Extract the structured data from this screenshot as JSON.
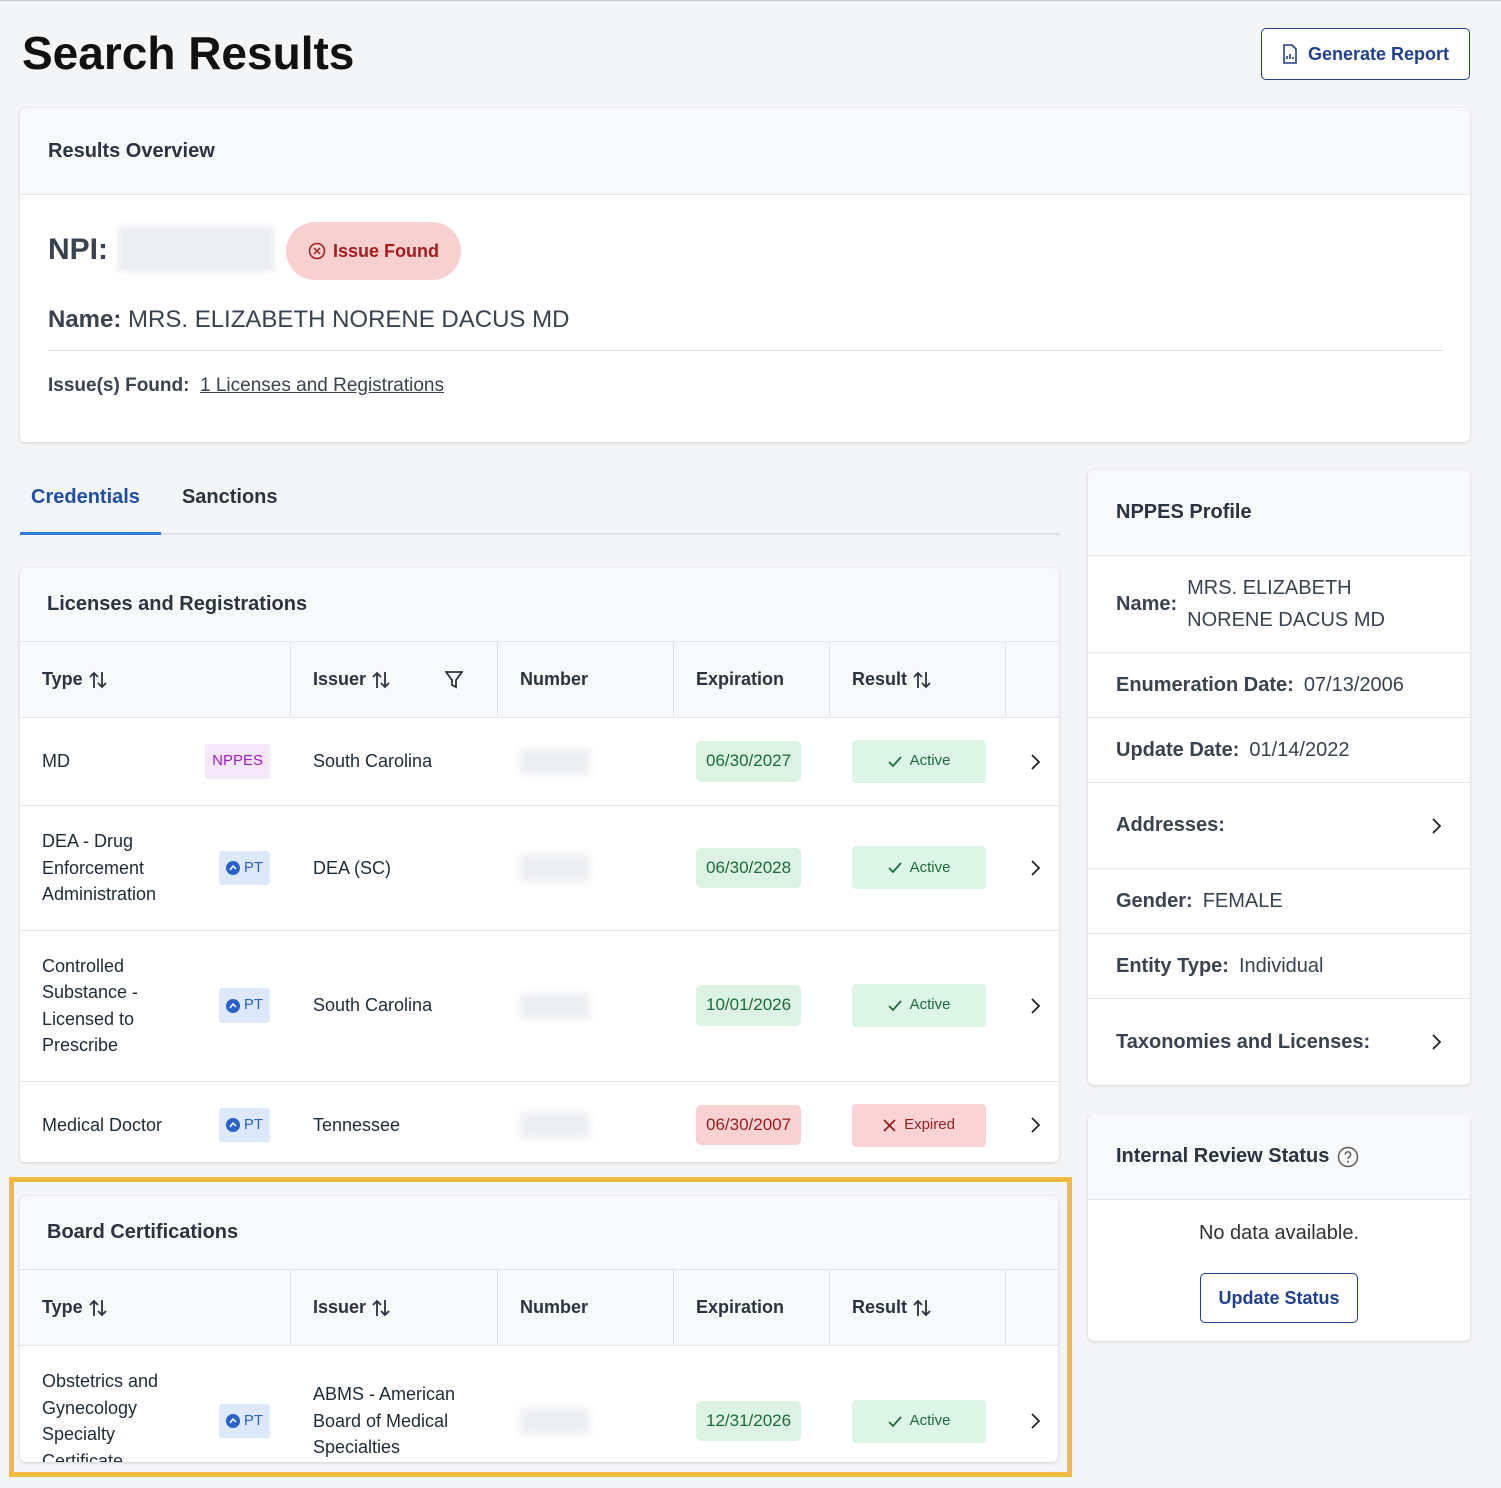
{
  "header": {
    "title": "Search Results",
    "button": "Generate Report"
  },
  "overview": {
    "title": "Results Overview",
    "npi_label": "NPI:",
    "status": "Issue Found",
    "name_label": "Name:",
    "name": "MRS. ELIZABETH NORENE DACUS MD",
    "issues_label": "Issue(s) Found:",
    "issues_link": "1 Licenses and Registrations"
  },
  "tabs": [
    "Credentials",
    "Sanctions"
  ],
  "licenses": {
    "title": "Licenses and Registrations",
    "columns": [
      {
        "label": "Type",
        "sortable": true
      },
      {
        "label": "Issuer",
        "sortable": true,
        "filter": true
      },
      {
        "label": "Number"
      },
      {
        "label": "Expiration"
      },
      {
        "label": "Result",
        "sortable": true
      }
    ],
    "rows": [
      {
        "type": "MD",
        "source": {
          "label": "NPPES",
          "color": "#a21cc4",
          "background": "#f6e7fb",
          "icon": false
        },
        "issuer": "South Carolina",
        "expiration": "06/30/2027",
        "result": "Active",
        "ok": true
      },
      {
        "type": "DEA - Drug Enforcement Administration",
        "source": {
          "label": "PT",
          "color": "#2a62c9",
          "background": "#dde9fb",
          "icon": true
        },
        "issuer": "DEA (SC)",
        "expiration": "06/30/2028",
        "result": "Active",
        "ok": true
      },
      {
        "type": "Controlled Substance - Licensed to Prescribe",
        "source": {
          "label": "PT",
          "color": "#2a62c9",
          "background": "#dde9fb",
          "icon": true
        },
        "issuer": "South Carolina",
        "expiration": "10/01/2026",
        "result": "Active",
        "ok": true
      },
      {
        "type": "Medical Doctor",
        "source": {
          "label": "PT",
          "color": "#2a62c9",
          "background": "#dde9fb",
          "icon": true
        },
        "issuer": "Tennessee",
        "expiration": "06/30/2007",
        "result": "Expired",
        "ok": false
      }
    ]
  },
  "board": {
    "title": "Board Certifications",
    "columns": [
      {
        "label": "Type",
        "sortable": true
      },
      {
        "label": "Issuer",
        "sortable": true
      },
      {
        "label": "Number"
      },
      {
        "label": "Expiration"
      },
      {
        "label": "Result",
        "sortable": true
      }
    ],
    "rows": [
      {
        "type": "Obstetrics and Gynecology Specialty Certificate",
        "source": {
          "label": "PT",
          "color": "#2a62c9",
          "background": "#dde9fb",
          "icon": true
        },
        "issuer": "ABMS - American Board of Medical Specialties",
        "expiration": "12/31/2026",
        "result": "Active",
        "ok": true
      }
    ]
  },
  "nppes": {
    "title": "NPPES Profile",
    "fields": [
      {
        "label": "Name:",
        "value": "MRS. ELIZABETH NORENE DACUS MD"
      },
      {
        "label": "Enumeration Date:",
        "value": "07/13/2006"
      },
      {
        "label": "Update Date:",
        "value": "01/14/2022"
      },
      {
        "label": "Addresses:"
      },
      {
        "label": "Gender:",
        "value": "FEMALE"
      },
      {
        "label": "Entity Type:",
        "value": "Individual"
      },
      {
        "label": "Taxonomies and Licenses:"
      }
    ]
  },
  "review": {
    "title": "Internal Review Status",
    "message": "No data available.",
    "button": "Update Status"
  }
}
